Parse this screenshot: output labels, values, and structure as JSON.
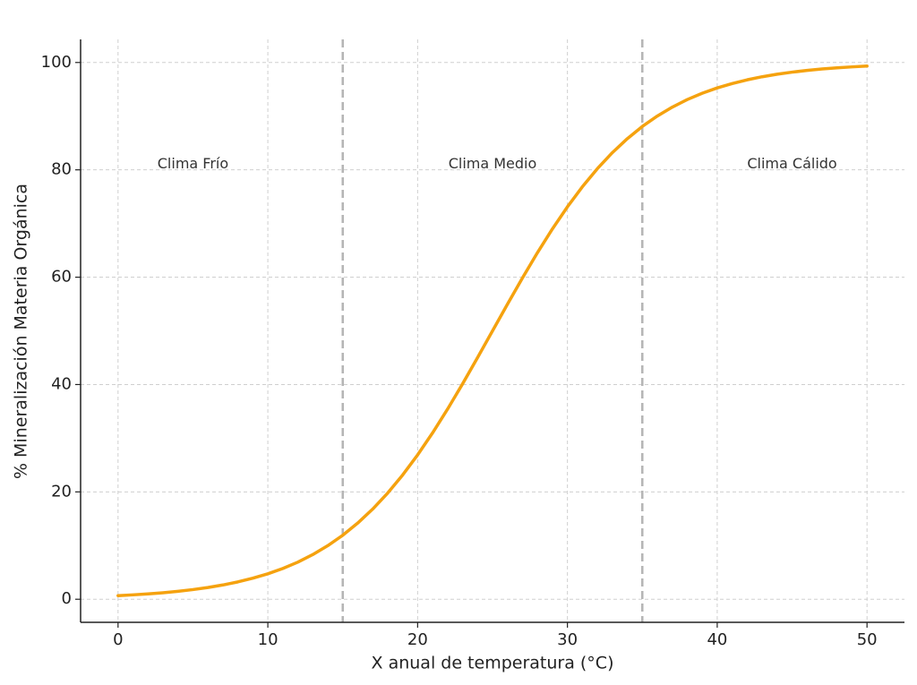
{
  "chart_data": {
    "type": "line",
    "xlabel": "X anual de temperatura (°C)",
    "ylabel": "% Mineralización Materia Orgánica",
    "x": [
      0,
      1,
      2,
      3,
      4,
      5,
      6,
      7,
      8,
      9,
      10,
      11,
      12,
      13,
      14,
      15,
      16,
      17,
      18,
      19,
      20,
      21,
      22,
      23,
      24,
      25,
      26,
      27,
      28,
      29,
      30,
      31,
      32,
      33,
      34,
      35,
      36,
      37,
      38,
      39,
      40,
      41,
      42,
      43,
      44,
      45,
      46,
      47,
      48,
      49,
      50
    ],
    "values": [
      0.67,
      0.82,
      1.0,
      1.21,
      1.48,
      1.8,
      2.19,
      2.66,
      3.23,
      3.92,
      4.74,
      5.73,
      6.91,
      8.32,
      9.98,
      11.92,
      14.19,
      16.8,
      19.78,
      23.15,
      26.89,
      31.0,
      35.43,
      40.13,
      45.02,
      50,
      54.98,
      59.87,
      64.57,
      69.0,
      73.11,
      76.85,
      80.22,
      83.2,
      85.81,
      88.08,
      90.02,
      91.68,
      93.09,
      94.27,
      95.26,
      96.08,
      96.77,
      97.34,
      97.81,
      98.2,
      98.52,
      98.79,
      99.0,
      99.18,
      99.33
    ],
    "color": "#f5a20f",
    "vlines": [
      15,
      35
    ],
    "annotations": [
      {
        "text": "Clima Frío",
        "x": 5,
        "y": 81
      },
      {
        "text": "Clima Medio",
        "x": 25,
        "y": 81
      },
      {
        "text": "Clima Cálido",
        "x": 45,
        "y": 81
      }
    ],
    "xlim": [
      -2.5,
      52.5
    ],
    "ylim": [
      -4.3,
      104.3
    ],
    "xticks": [
      0,
      10,
      20,
      30,
      40,
      50
    ],
    "yticks": [
      0,
      20,
      40,
      60,
      80,
      100
    ],
    "grid": true
  }
}
